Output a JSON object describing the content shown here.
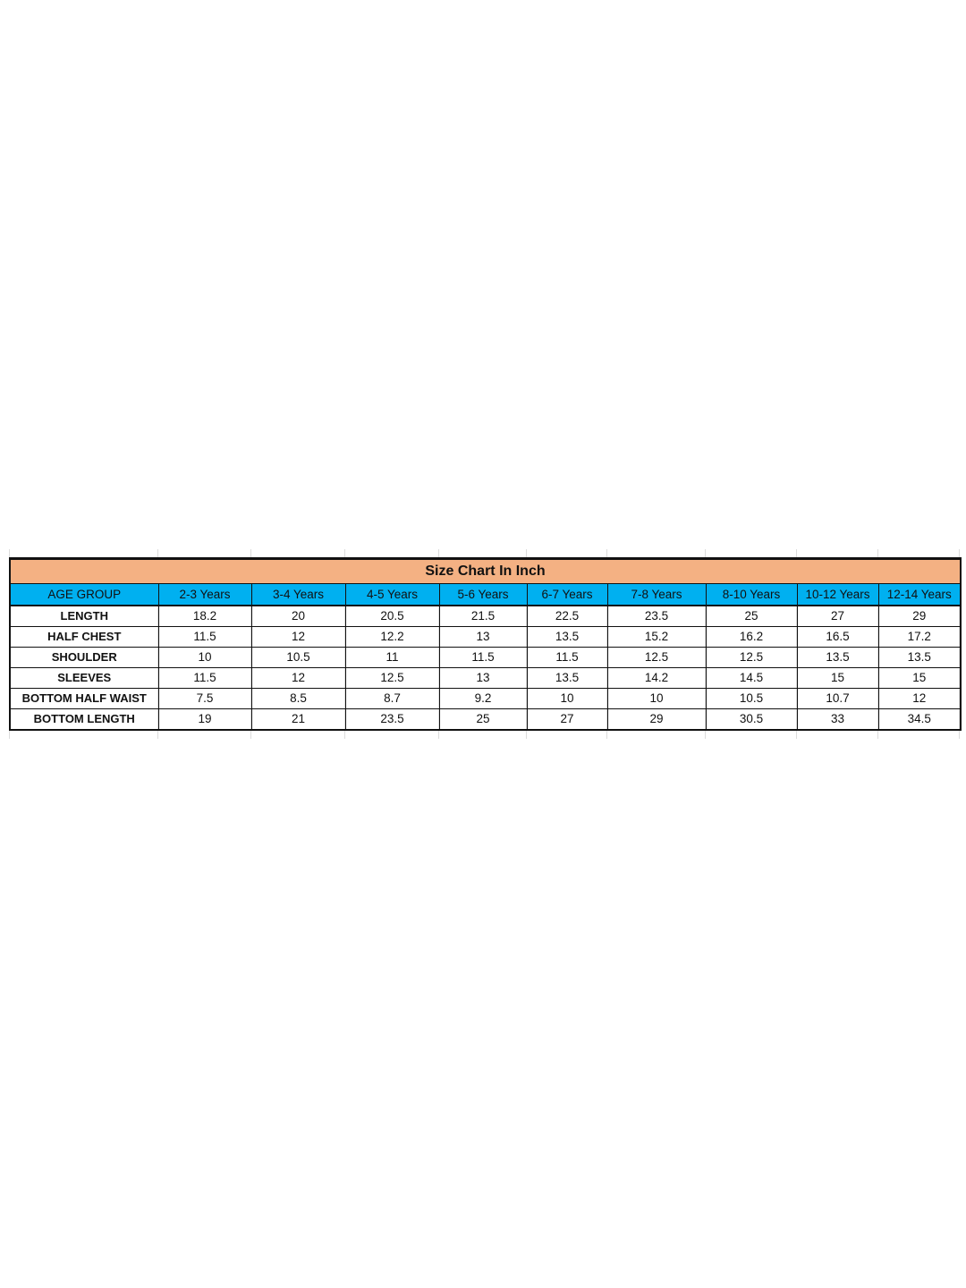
{
  "title": "Size Chart In Inch",
  "header": [
    "AGE GROUP",
    "2-3 Years",
    "3-4 Years",
    "4-5 Years",
    "5-6 Years",
    "6-7 Years",
    "7-8 Years",
    "8-10 Years",
    "10-12 Years",
    "12-14 Years"
  ],
  "rows": [
    {
      "label": "LENGTH",
      "values": [
        "18.2",
        "20",
        "20.5",
        "21.5",
        "22.5",
        "23.5",
        "25",
        "27",
        "29"
      ]
    },
    {
      "label": "HALF CHEST",
      "values": [
        "11.5",
        "12",
        "12.2",
        "13",
        "13.5",
        "15.2",
        "16.2",
        "16.5",
        "17.2"
      ]
    },
    {
      "label": "SHOULDER",
      "values": [
        "10",
        "10.5",
        "11",
        "11.5",
        "11.5",
        "12.5",
        "12.5",
        "13.5",
        "13.5"
      ]
    },
    {
      "label": "SLEEVES",
      "values": [
        "11.5",
        "12",
        "12.5",
        "13",
        "13.5",
        "14.2",
        "14.5",
        "15",
        "15"
      ]
    },
    {
      "label": "BOTTOM  HALF WAIST",
      "values": [
        "7.5",
        "8.5",
        "8.7",
        "9.2",
        "10",
        "10",
        "10.5",
        "10.7",
        "12"
      ]
    },
    {
      "label": "BOTTOM LENGTH",
      "values": [
        "19",
        "21",
        "23.5",
        "25",
        "27",
        "29",
        "30.5",
        "33",
        "34.5"
      ]
    }
  ],
  "colors": {
    "title_bg": "#f4b183",
    "header_bg": "#00b0f0"
  }
}
